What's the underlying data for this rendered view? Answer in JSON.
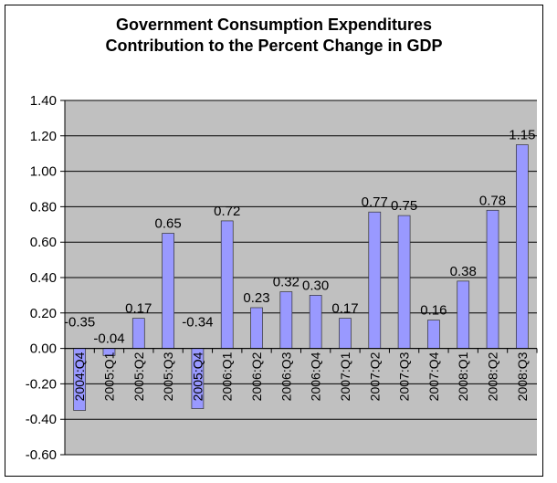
{
  "chart_data": {
    "type": "bar",
    "title": [
      "Government Consumption Expenditures",
      "Contribution to the Percent Change in GDP"
    ],
    "xlabel": "",
    "ylabel": "",
    "categories": [
      "2004:Q4",
      "2005:Q1",
      "2005:Q2",
      "2005:Q3",
      "2005:Q4",
      "2006:Q1",
      "2006:Q2",
      "2006:Q3",
      "2006:Q4",
      "2007:Q1",
      "2007:Q2",
      "2007:Q3",
      "2007:Q4",
      "2008:Q1",
      "2008:Q2",
      "2008:Q3"
    ],
    "values": [
      -0.35,
      -0.04,
      0.17,
      0.65,
      -0.34,
      0.72,
      0.23,
      0.32,
      0.3,
      0.17,
      0.77,
      0.75,
      0.16,
      0.38,
      0.78,
      1.15
    ],
    "ylim": [
      -0.6,
      1.4
    ],
    "yticks": [
      "1.40",
      "1.20",
      "1.00",
      "0.80",
      "0.60",
      "0.40",
      "0.20",
      "0.00",
      "-0.20",
      "-0.40",
      "-0.60"
    ],
    "grid": true,
    "legend": "none",
    "colors": {
      "bar": "#9999FF",
      "plot_bg": "#C0C0C0"
    }
  }
}
